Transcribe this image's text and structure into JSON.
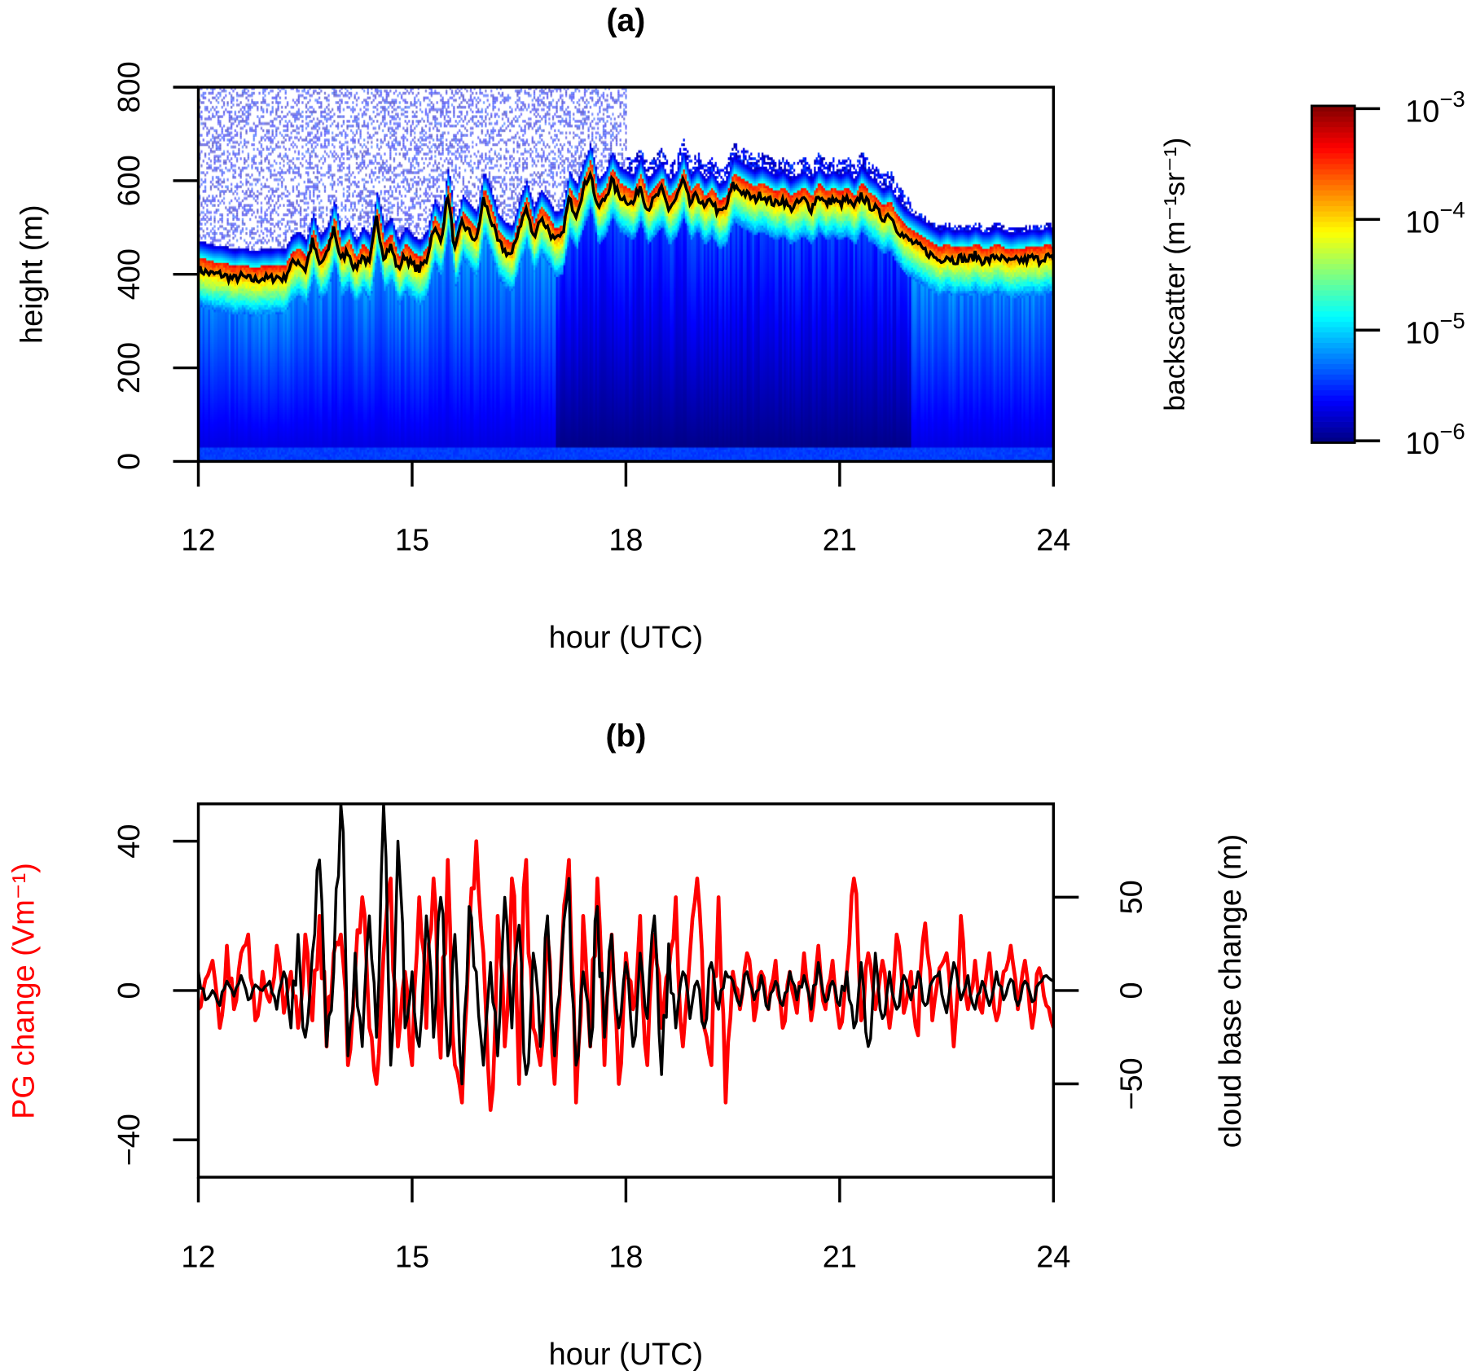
{
  "chart_data": [
    {
      "panel": "(a)",
      "type": "heatmap",
      "title": "(a)",
      "xlabel": "hour (UTC)",
      "ylabel": "height (m)",
      "xlim": [
        12,
        24
      ],
      "ylim": [
        0,
        800
      ],
      "xticks": [
        "12",
        "15",
        "18",
        "21",
        "24"
      ],
      "yticks": [
        "0",
        "200",
        "400",
        "600",
        "800"
      ],
      "colorbar": {
        "label": "backscatter (m⁻¹sr⁻¹)",
        "scale": "log",
        "range": [
          1e-06,
          0.001
        ],
        "colormap": "jet",
        "ticks": [
          {
            "base": "10",
            "exp": "−6"
          },
          {
            "base": "10",
            "exp": "−5"
          },
          {
            "base": "10",
            "exp": "−4"
          },
          {
            "base": "10",
            "exp": "−3"
          }
        ]
      },
      "cloud_base_line": {
        "color": "#000000",
        "x_start": 12,
        "x_step": 0.1,
        "values": [
          410,
          405,
          400,
          400,
          395,
          390,
          395,
          390,
          388,
          392,
          390,
          395,
          390,
          420,
          430,
          410,
          470,
          420,
          440,
          500,
          430,
          450,
          410,
          440,
          420,
          520,
          440,
          460,
          410,
          440,
          420,
          410,
          430,
          500,
          470,
          570,
          450,
          510,
          490,
          470,
          560,
          520,
          470,
          450,
          440,
          500,
          540,
          480,
          520,
          500,
          470,
          480,
          560,
          530,
          580,
          620,
          540,
          560,
          600,
          570,
          560,
          550,
          590,
          540,
          560,
          580,
          540,
          560,
          600,
          550,
          570,
          540,
          560,
          530,
          540,
          590,
          580,
          570,
          560,
          570,
          560,
          550,
          560,
          540,
          550,
          560,
          540,
          570,
          550,
          560,
          550,
          560,
          540,
          570,
          550,
          540,
          520,
          530,
          500,
          480,
          470,
          460,
          450,
          440,
          430,
          440,
          430,
          435,
          430,
          440,
          430,
          430,
          440,
          430,
          425,
          430,
          430,
          435,
          430,
          440,
          430
        ]
      }
    },
    {
      "panel": "(b)",
      "type": "line",
      "title": "(b)",
      "xlabel": "hour (UTC)",
      "ylabel_left": "PG change (Vm⁻¹)",
      "ylabel_right": "cloud base change (m)",
      "xlim": [
        12,
        24
      ],
      "ylim_left": [
        -50,
        50
      ],
      "ylim_right": [
        -100,
        100
      ],
      "xticks": [
        "12",
        "15",
        "18",
        "21",
        "24"
      ],
      "yticks_left": [
        "−40",
        "0",
        "40"
      ],
      "yticks_right": [
        "−50",
        "0",
        "50"
      ],
      "series": [
        {
          "axis": "left",
          "color": "#ff0000",
          "x_start": 12,
          "x_step": 0.1,
          "values": [
            -5,
            3,
            8,
            -10,
            12,
            -5,
            10,
            15,
            -8,
            5,
            -3,
            12,
            -6,
            5,
            -10,
            15,
            -8,
            20,
            -15,
            10,
            15,
            -20,
            5,
            25,
            -10,
            -25,
            10,
            30,
            -15,
            5,
            -20,
            25,
            -10,
            30,
            -18,
            35,
            -20,
            -30,
            15,
            40,
            10,
            -32,
            20,
            -15,
            30,
            -25,
            35,
            -10,
            -20,
            15,
            -25,
            10,
            35,
            -30,
            20,
            -15,
            30,
            -20,
            15,
            -25,
            10,
            -5,
            20,
            -20,
            15,
            -10,
            5,
            25,
            -15,
            10,
            30,
            -10,
            -20,
            25,
            -30,
            5,
            -5,
            10,
            -8,
            5,
            -5,
            8,
            -10,
            5,
            -6,
            10,
            -8,
            12,
            -5,
            8,
            -10,
            5,
            30,
            -8,
            10,
            -5,
            8,
            -10,
            15,
            -6,
            5,
            -12,
            18,
            -8,
            6,
            10,
            -15,
            20,
            -5,
            8,
            -6,
            10,
            -8,
            5,
            12,
            -5,
            8,
            -10,
            6,
            -4,
            -10
          ]
        },
        {
          "axis": "right",
          "color": "#000000",
          "x_start": 12,
          "x_step": 0.1,
          "values": [
            10,
            -5,
            0,
            -8,
            5,
            -3,
            8,
            -5,
            3,
            0,
            5,
            -10,
            10,
            -20,
            30,
            -25,
            20,
            70,
            -30,
            10,
            100,
            -35,
            20,
            -30,
            40,
            -25,
            100,
            -40,
            80,
            -20,
            10,
            -30,
            40,
            -25,
            50,
            -35,
            30,
            -50,
            45,
            10,
            -40,
            15,
            -35,
            50,
            -20,
            35,
            -45,
            20,
            -30,
            40,
            -35,
            20,
            60,
            -40,
            10,
            -30,
            45,
            -25,
            30,
            -20,
            15,
            -30,
            20,
            -15,
            40,
            -45,
            25,
            -20,
            10,
            -15,
            5,
            -20,
            15,
            -10,
            10,
            5,
            -8,
            10,
            -5,
            8,
            -10,
            5,
            -8,
            10,
            -5,
            8,
            -10,
            15,
            -6,
            5,
            -8,
            10,
            -20,
            15,
            -30,
            20,
            -15,
            10,
            -10,
            8,
            -5,
            10,
            -8,
            5,
            10,
            -12,
            15,
            -5,
            8,
            -10,
            5,
            -8,
            10,
            -5,
            6,
            -8,
            5,
            -6,
            4,
            8,
            5
          ]
        }
      ]
    }
  ]
}
